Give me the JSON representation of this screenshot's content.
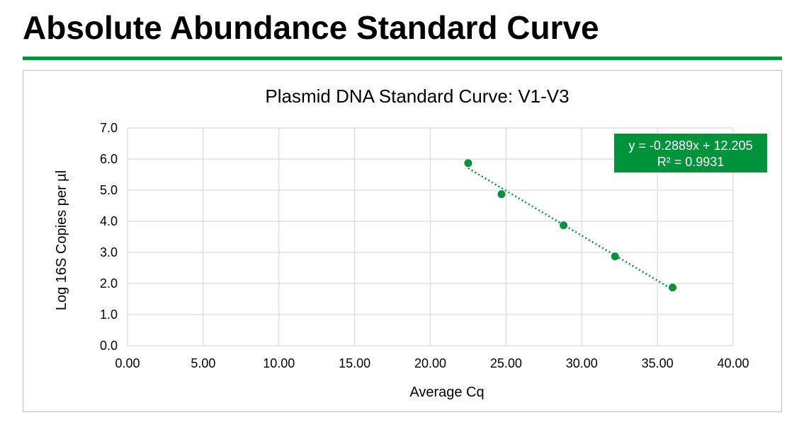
{
  "page": {
    "title": "Absolute Abundance Standard Curve"
  },
  "colors": {
    "accent": "#00933c",
    "grid": "#d9d9d9",
    "frame": "#bfbfbf"
  },
  "chart_data": {
    "type": "scatter",
    "title": "Plasmid DNA Standard Curve: V1-V3",
    "xlabel": "Average Cq",
    "ylabel": "Log 16S Copies per µl",
    "xlim": [
      0,
      40
    ],
    "ylim": [
      0,
      7
    ],
    "x_ticks": [
      "0.00",
      "5.00",
      "10.00",
      "15.00",
      "20.00",
      "25.00",
      "30.00",
      "35.00",
      "40.00"
    ],
    "y_ticks": [
      "0.0",
      "1.0",
      "2.0",
      "3.0",
      "4.0",
      "5.0",
      "6.0",
      "7.0"
    ],
    "grid": true,
    "series": [
      {
        "color": "#00933c",
        "points": [
          {
            "x": 22.5,
            "y": 5.87
          },
          {
            "x": 24.7,
            "y": 4.87
          },
          {
            "x": 28.8,
            "y": 3.87
          },
          {
            "x": 32.2,
            "y": 2.87
          },
          {
            "x": 36.0,
            "y": 1.87
          }
        ]
      }
    ],
    "trendline": {
      "type": "linear",
      "slope": -0.2889,
      "intercept": 12.205,
      "style": "dotted",
      "color": "#00933c"
    },
    "annotation": {
      "equation": "y = -0.2889x + 12.205",
      "r_squared": "R² = 0.9931",
      "placement": "top-right"
    }
  }
}
